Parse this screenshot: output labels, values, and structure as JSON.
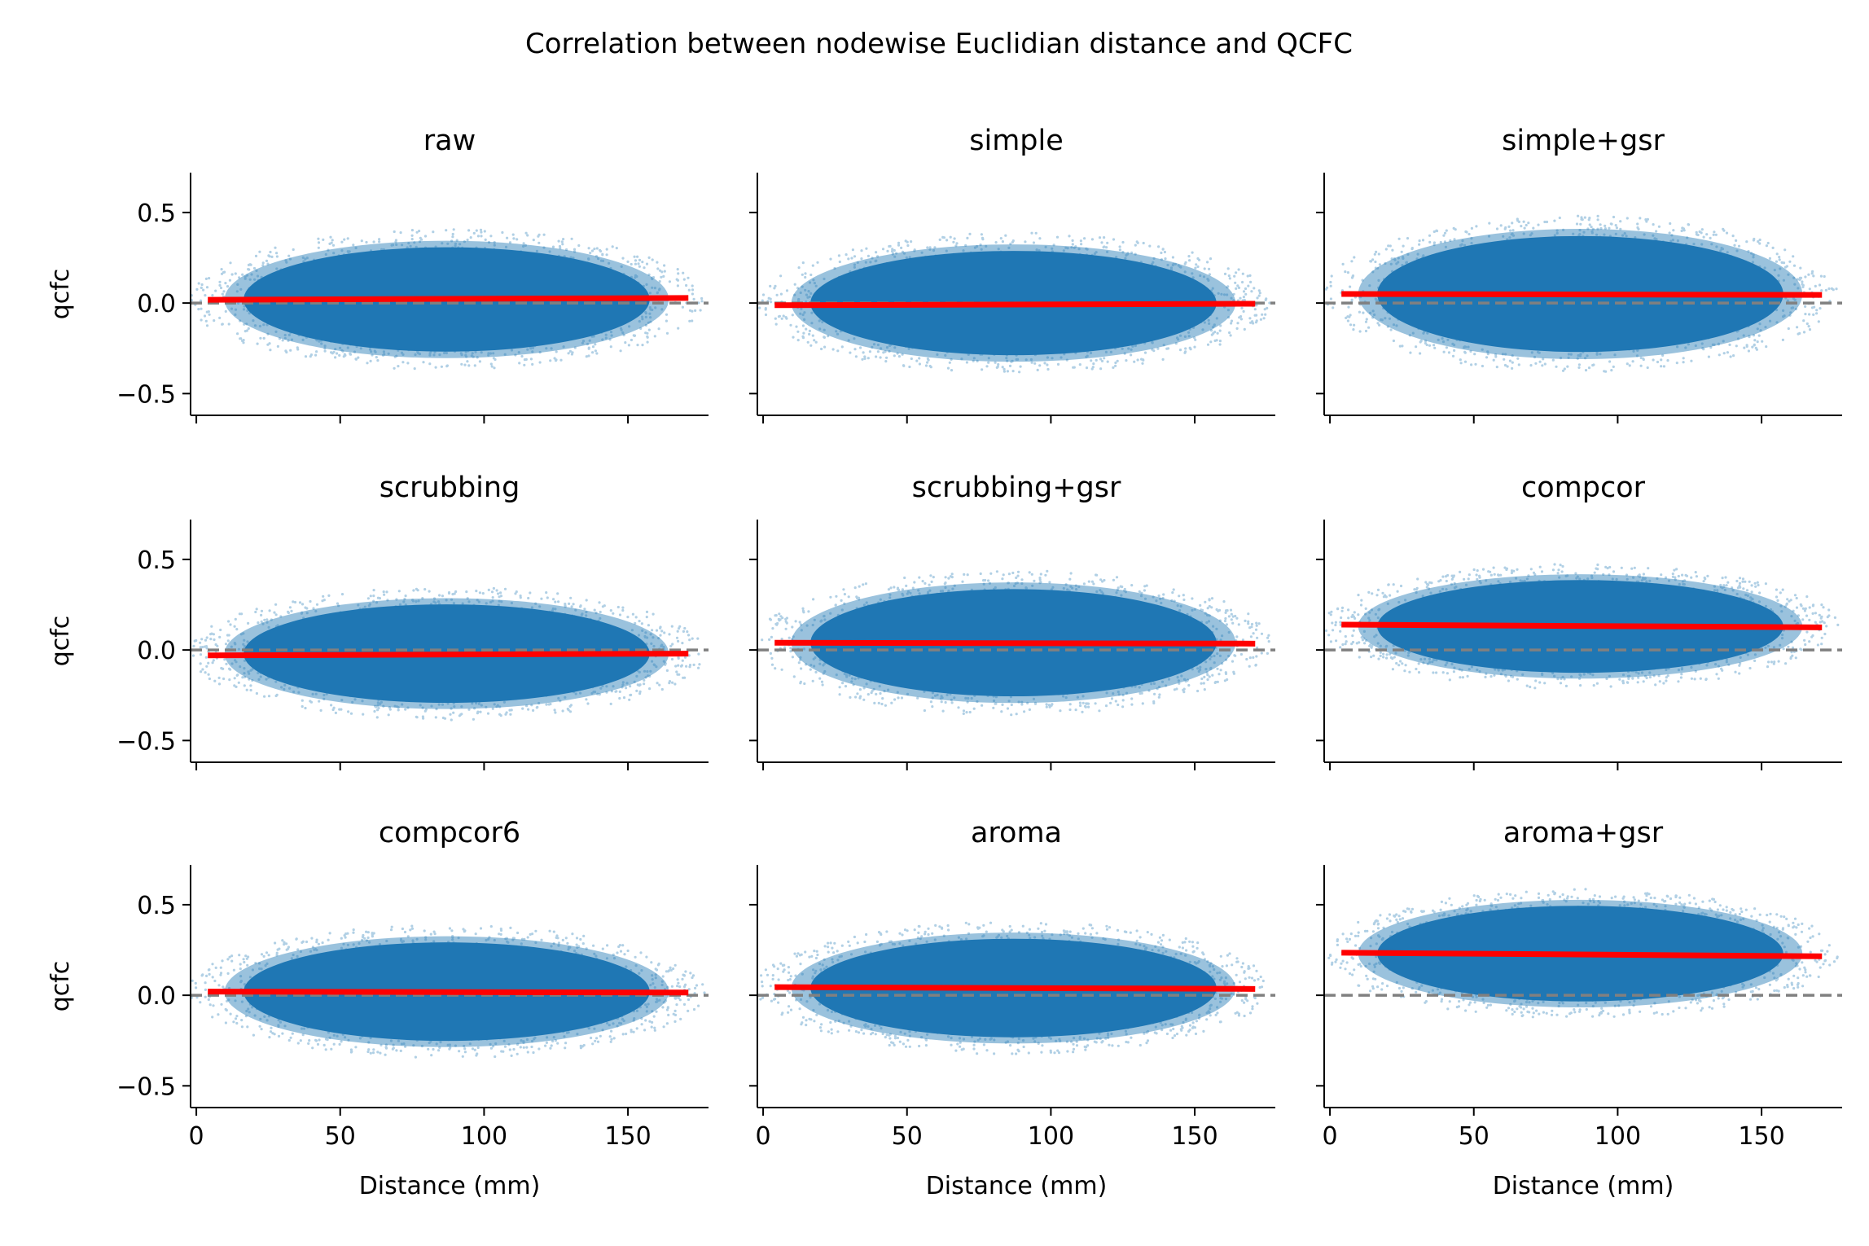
{
  "figure": {
    "title": "Correlation between nodewise Euclidian distance and QCFC"
  },
  "colors": {
    "points": "#1f77b4",
    "fit_line": "#ff0000",
    "zero_line": "#808080",
    "axes": "#000000"
  },
  "chart_data": [
    {
      "type": "scatter",
      "title": "raw",
      "xlabel": "",
      "ylabel": "qcfc",
      "xlim": [
        -2,
        178
      ],
      "ylim": [
        -0.62,
        0.72
      ],
      "xticks": [
        0,
        50,
        100,
        150
      ],
      "xtick_labels": [
        "",
        "",
        "",
        ""
      ],
      "yticks": [
        -0.5,
        0.0,
        0.5
      ],
      "ytick_labels": [
        "−0.5",
        "0.0",
        "0.5"
      ],
      "cloud": {
        "x_range": [
          4,
          170
        ],
        "center_y": 0.02,
        "half_height": 0.36
      },
      "fit": {
        "x": [
          4,
          171
        ],
        "y": [
          0.018,
          0.028
        ]
      },
      "reference_line_y": 0.0,
      "grid": false
    },
    {
      "type": "scatter",
      "title": "simple",
      "xlabel": "",
      "ylabel": "",
      "xlim": [
        -2,
        178
      ],
      "ylim": [
        -0.62,
        0.72
      ],
      "xticks": [
        0,
        50,
        100,
        150
      ],
      "xtick_labels": [
        "",
        "",
        "",
        ""
      ],
      "yticks": [
        -0.5,
        0.0,
        0.5
      ],
      "ytick_labels": [
        "",
        "",
        ""
      ],
      "cloud": {
        "x_range": [
          4,
          170
        ],
        "center_y": 0.0,
        "half_height": 0.36
      },
      "fit": {
        "x": [
          4,
          171
        ],
        "y": [
          -0.012,
          -0.004
        ]
      },
      "reference_line_y": 0.0,
      "grid": false
    },
    {
      "type": "scatter",
      "title": "simple+gsr",
      "xlabel": "",
      "ylabel": "",
      "xlim": [
        -2,
        178
      ],
      "ylim": [
        -0.62,
        0.72
      ],
      "xticks": [
        0,
        50,
        100,
        150
      ],
      "xtick_labels": [
        "",
        "",
        "",
        ""
      ],
      "yticks": [
        -0.5,
        0.0,
        0.5
      ],
      "ytick_labels": [
        "",
        "",
        ""
      ],
      "cloud": {
        "x_range": [
          4,
          170
        ],
        "center_y": 0.05,
        "half_height": 0.4
      },
      "fit": {
        "x": [
          4,
          171
        ],
        "y": [
          0.05,
          0.045
        ]
      },
      "reference_line_y": 0.0,
      "grid": false
    },
    {
      "type": "scatter",
      "title": "scrubbing",
      "xlabel": "",
      "ylabel": "qcfc",
      "xlim": [
        -2,
        178
      ],
      "ylim": [
        -0.62,
        0.72
      ],
      "xticks": [
        0,
        50,
        100,
        150
      ],
      "xtick_labels": [
        "",
        "",
        "",
        ""
      ],
      "yticks": [
        -0.5,
        0.0,
        0.5
      ],
      "ytick_labels": [
        "−0.5",
        "0.0",
        "0.5"
      ],
      "cloud": {
        "x_range": [
          4,
          170
        ],
        "center_y": -0.02,
        "half_height": 0.34
      },
      "fit": {
        "x": [
          4,
          171
        ],
        "y": [
          -0.03,
          -0.02
        ]
      },
      "reference_line_y": 0.0,
      "grid": false
    },
    {
      "type": "scatter",
      "title": "scrubbing+gsr",
      "xlabel": "",
      "ylabel": "",
      "xlim": [
        -2,
        178
      ],
      "ylim": [
        -0.62,
        0.72
      ],
      "xticks": [
        0,
        50,
        100,
        150
      ],
      "xtick_labels": [
        "",
        "",
        "",
        ""
      ],
      "yticks": [
        -0.5,
        0.0,
        0.5
      ],
      "ytick_labels": [
        "",
        "",
        ""
      ],
      "cloud": {
        "x_range": [
          4,
          170
        ],
        "center_y": 0.04,
        "half_height": 0.37
      },
      "fit": {
        "x": [
          4,
          171
        ],
        "y": [
          0.04,
          0.035
        ]
      },
      "reference_line_y": 0.0,
      "grid": false
    },
    {
      "type": "scatter",
      "title": "compcor",
      "xlabel": "",
      "ylabel": "",
      "xlim": [
        -2,
        178
      ],
      "ylim": [
        -0.62,
        0.72
      ],
      "xticks": [
        0,
        50,
        100,
        150
      ],
      "xtick_labels": [
        "",
        "",
        "",
        ""
      ],
      "yticks": [
        -0.5,
        0.0,
        0.5
      ],
      "ytick_labels": [
        "",
        "",
        ""
      ],
      "cloud": {
        "x_range": [
          4,
          170
        ],
        "center_y": 0.13,
        "half_height": 0.32
      },
      "fit": {
        "x": [
          4,
          171
        ],
        "y": [
          0.14,
          0.125
        ]
      },
      "reference_line_y": 0.0,
      "grid": false
    },
    {
      "type": "scatter",
      "title": "compcor6",
      "xlabel": "Distance (mm)",
      "ylabel": "qcfc",
      "xlim": [
        -2,
        178
      ],
      "ylim": [
        -0.62,
        0.72
      ],
      "xticks": [
        0,
        50,
        100,
        150
      ],
      "xtick_labels": [
        "0",
        "50",
        "100",
        "150"
      ],
      "yticks": [
        -0.5,
        0.0,
        0.5
      ],
      "ytick_labels": [
        "−0.5",
        "0.0",
        "0.5"
      ],
      "cloud": {
        "x_range": [
          4,
          170
        ],
        "center_y": 0.02,
        "half_height": 0.34
      },
      "fit": {
        "x": [
          4,
          171
        ],
        "y": [
          0.02,
          0.015
        ]
      },
      "reference_line_y": 0.0,
      "grid": false
    },
    {
      "type": "scatter",
      "title": "aroma",
      "xlabel": "Distance (mm)",
      "ylabel": "",
      "xlim": [
        -2,
        178
      ],
      "ylim": [
        -0.62,
        0.72
      ],
      "xticks": [
        0,
        50,
        100,
        150
      ],
      "xtick_labels": [
        "0",
        "50",
        "100",
        "150"
      ],
      "yticks": [
        -0.5,
        0.0,
        0.5
      ],
      "ytick_labels": [
        "",
        "",
        ""
      ],
      "cloud": {
        "x_range": [
          4,
          170
        ],
        "center_y": 0.04,
        "half_height": 0.34
      },
      "fit": {
        "x": [
          4,
          171
        ],
        "y": [
          0.045,
          0.035
        ]
      },
      "reference_line_y": 0.0,
      "grid": false
    },
    {
      "type": "scatter",
      "title": "aroma+gsr",
      "xlabel": "Distance (mm)",
      "ylabel": "",
      "xlim": [
        -2,
        178
      ],
      "ylim": [
        -0.62,
        0.72
      ],
      "xticks": [
        0,
        50,
        100,
        150
      ],
      "xtick_labels": [
        "0",
        "50",
        "100",
        "150"
      ],
      "yticks": [
        -0.5,
        0.0,
        0.5
      ],
      "ytick_labels": [
        "",
        "",
        ""
      ],
      "cloud": {
        "x_range": [
          4,
          170
        ],
        "center_y": 0.23,
        "half_height": 0.33
      },
      "fit": {
        "x": [
          4,
          171
        ],
        "y": [
          0.235,
          0.215
        ]
      },
      "reference_line_y": 0.0,
      "grid": false
    }
  ]
}
